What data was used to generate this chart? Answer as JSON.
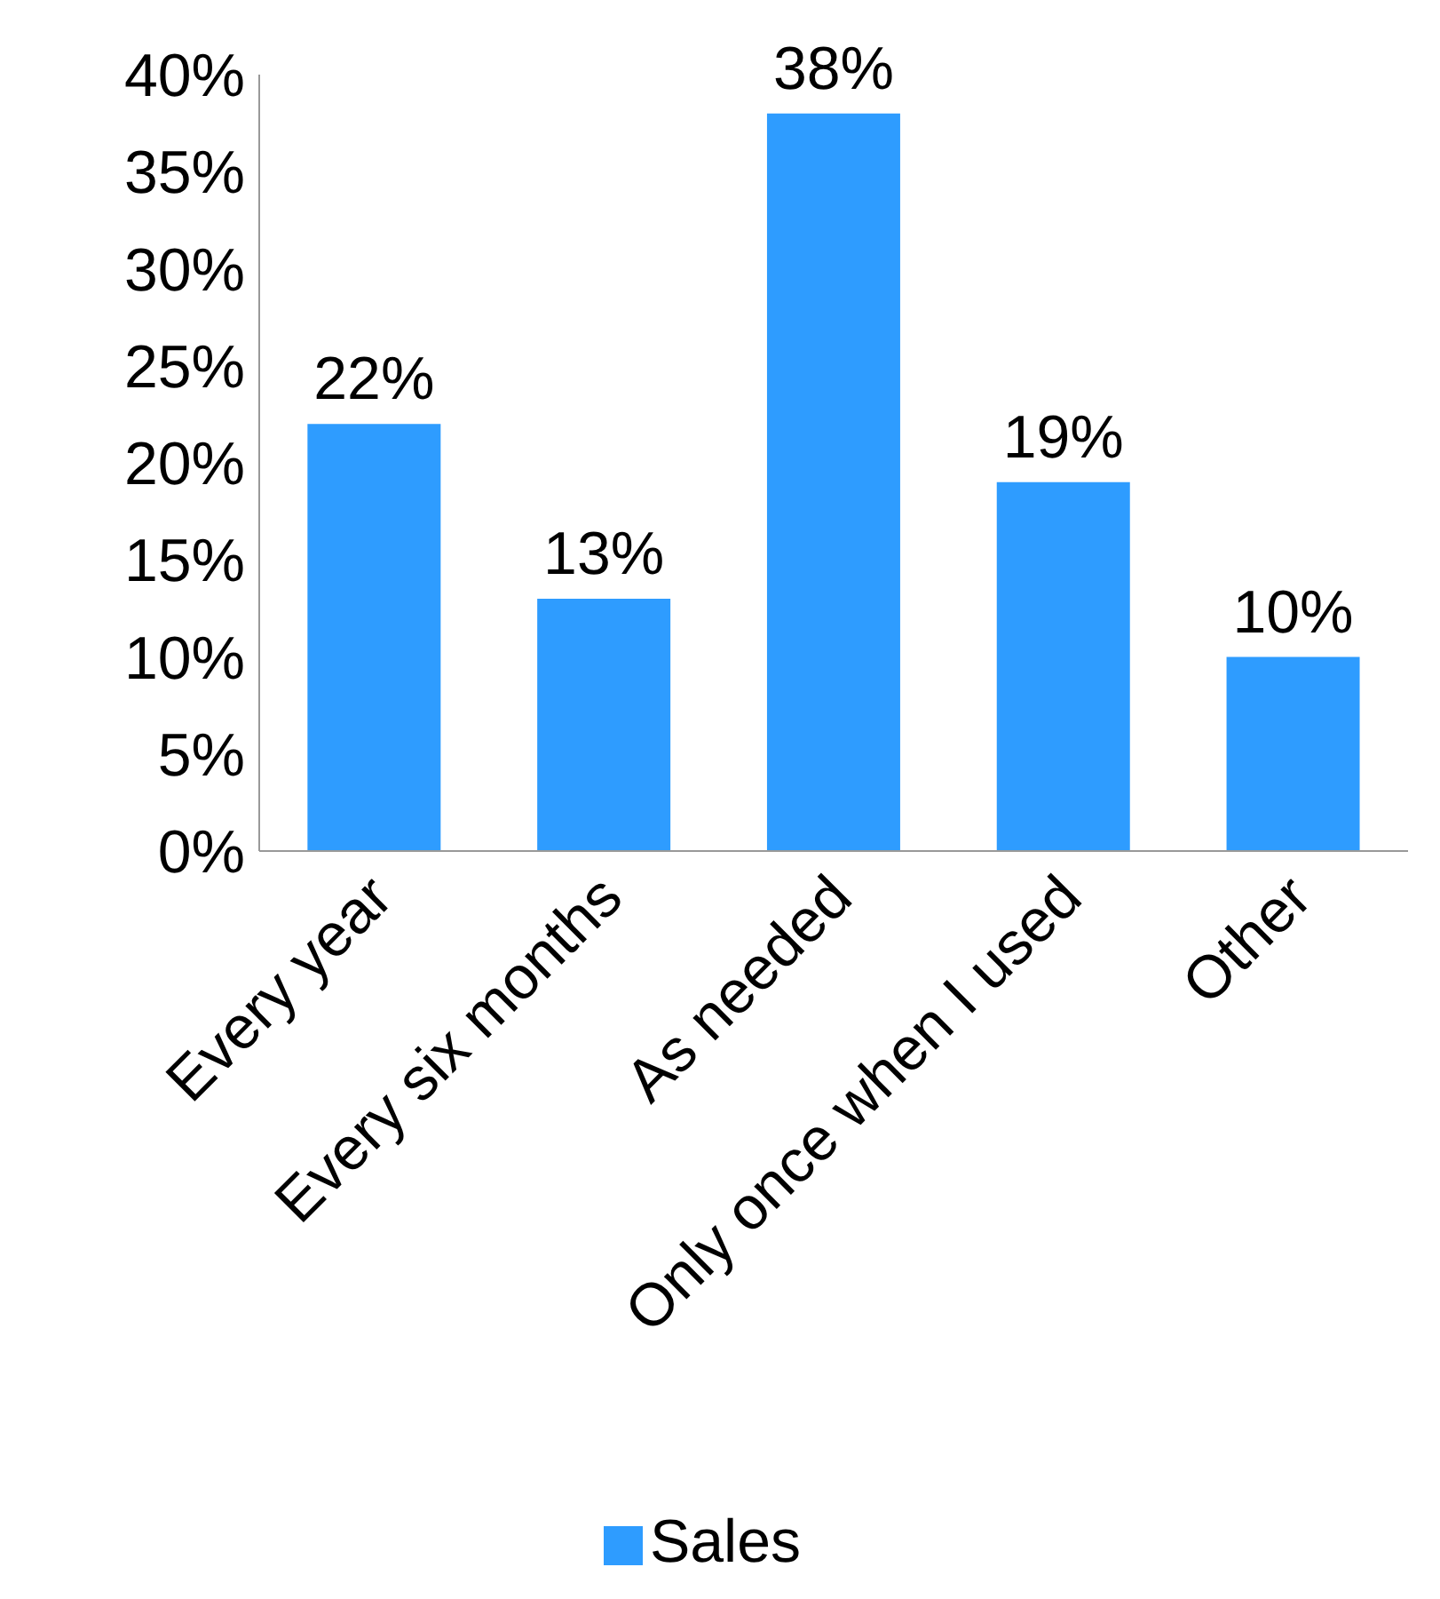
{
  "chart_data": {
    "type": "bar",
    "categories": [
      "Every year",
      "Every six months",
      "As needed",
      "Only once when I used",
      "Other"
    ],
    "series": [
      {
        "name": "Sales",
        "color": "#2e9cff",
        "values": [
          22,
          13,
          38,
          19,
          10
        ],
        "value_labels": [
          "22%",
          "13%",
          "38%",
          "19%",
          "10%"
        ]
      }
    ],
    "ylim": [
      0,
      40
    ],
    "yticks": [
      {
        "value": 0,
        "label": "0%"
      },
      {
        "value": 5,
        "label": "5%"
      },
      {
        "value": 10,
        "label": "10%"
      },
      {
        "value": 15,
        "label": "15%"
      },
      {
        "value": 20,
        "label": "20%"
      },
      {
        "value": 25,
        "label": "25%"
      },
      {
        "value": 30,
        "label": "30%"
      },
      {
        "value": 35,
        "label": "35%"
      },
      {
        "value": 40,
        "label": "40%"
      }
    ],
    "grid": false,
    "legend": "bottom"
  }
}
